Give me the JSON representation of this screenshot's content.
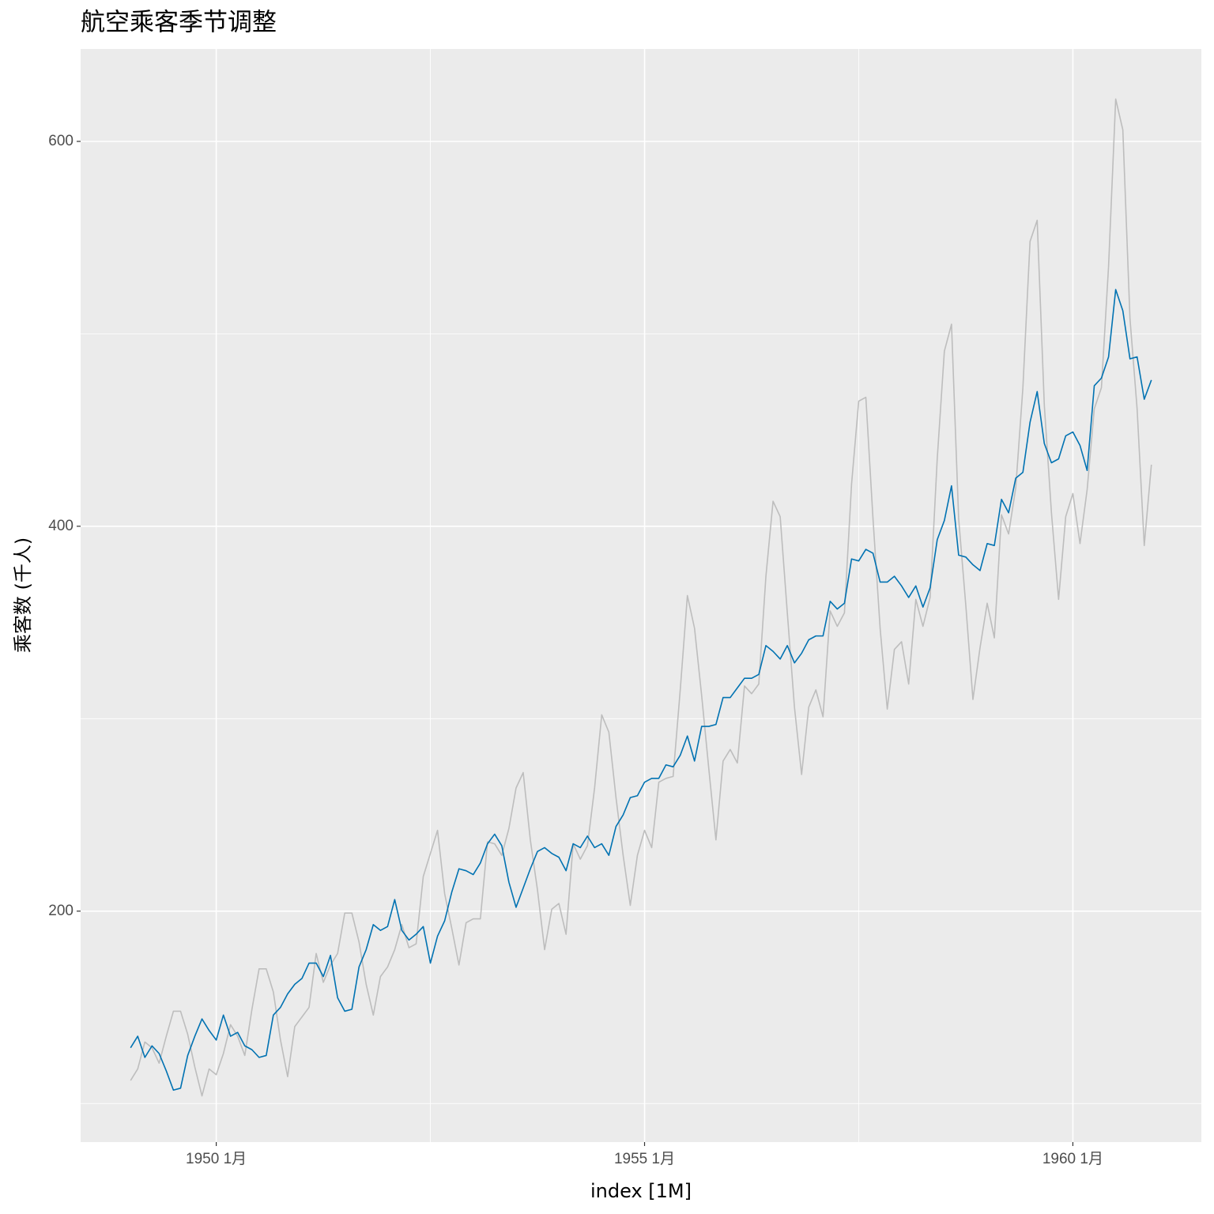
{
  "chart_data": {
    "type": "line",
    "title": "航空乘客季节调整",
    "xlabel": "index [1M]",
    "ylabel": "乘客数 (千人)",
    "x": [
      "1949-01",
      "1949-02",
      "1949-03",
      "1949-04",
      "1949-05",
      "1949-06",
      "1949-07",
      "1949-08",
      "1949-09",
      "1949-10",
      "1949-11",
      "1949-12",
      "1950-01",
      "1950-02",
      "1950-03",
      "1950-04",
      "1950-05",
      "1950-06",
      "1950-07",
      "1950-08",
      "1950-09",
      "1950-10",
      "1950-11",
      "1950-12",
      "1951-01",
      "1951-02",
      "1951-03",
      "1951-04",
      "1951-05",
      "1951-06",
      "1951-07",
      "1951-08",
      "1951-09",
      "1951-10",
      "1951-11",
      "1951-12",
      "1952-01",
      "1952-02",
      "1952-03",
      "1952-04",
      "1952-05",
      "1952-06",
      "1952-07",
      "1952-08",
      "1952-09",
      "1952-10",
      "1952-11",
      "1952-12",
      "1953-01",
      "1953-02",
      "1953-03",
      "1953-04",
      "1953-05",
      "1953-06",
      "1953-07",
      "1953-08",
      "1953-09",
      "1953-10",
      "1953-11",
      "1953-12",
      "1954-01",
      "1954-02",
      "1954-03",
      "1954-04",
      "1954-05",
      "1954-06",
      "1954-07",
      "1954-08",
      "1954-09",
      "1954-10",
      "1954-11",
      "1954-12",
      "1955-01",
      "1955-02",
      "1955-03",
      "1955-04",
      "1955-05",
      "1955-06",
      "1955-07",
      "1955-08",
      "1955-09",
      "1955-10",
      "1955-11",
      "1955-12",
      "1956-01",
      "1956-02",
      "1956-03",
      "1956-04",
      "1956-05",
      "1956-06",
      "1956-07",
      "1956-08",
      "1956-09",
      "1956-10",
      "1956-11",
      "1956-12",
      "1957-01",
      "1957-02",
      "1957-03",
      "1957-04",
      "1957-05",
      "1957-06",
      "1957-07",
      "1957-08",
      "1957-09",
      "1957-10",
      "1957-11",
      "1957-12",
      "1958-01",
      "1958-02",
      "1958-03",
      "1958-04",
      "1958-05",
      "1958-06",
      "1958-07",
      "1958-08",
      "1958-09",
      "1958-10",
      "1958-11",
      "1958-12",
      "1959-01",
      "1959-02",
      "1959-03",
      "1959-04",
      "1959-05",
      "1959-06",
      "1959-07",
      "1959-08",
      "1959-09",
      "1959-10",
      "1959-11",
      "1959-12",
      "1960-01",
      "1960-02",
      "1960-03",
      "1960-04",
      "1960-05",
      "1960-06",
      "1960-07",
      "1960-08",
      "1960-09",
      "1960-10",
      "1960-11",
      "1960-12"
    ],
    "series": [
      {
        "color": "#bdbdbd",
        "values": [
          112,
          118,
          132,
          129,
          121,
          135,
          148,
          148,
          136,
          119,
          104,
          118,
          115,
          126,
          141,
          135,
          125,
          149,
          170,
          170,
          158,
          133,
          114,
          140,
          145,
          150,
          178,
          163,
          172,
          178,
          199,
          199,
          184,
          162,
          146,
          166,
          171,
          180,
          193,
          181,
          183,
          218,
          230,
          242,
          209,
          191,
          172,
          194,
          196,
          196,
          236,
          235,
          229,
          243,
          264,
          272,
          237,
          211,
          180,
          201,
          204,
          188,
          235,
          227,
          234,
          264,
          302,
          293,
          259,
          229,
          203,
          229,
          242,
          233,
          267,
          269,
          270,
          315,
          364,
          347,
          312,
          274,
          237,
          278,
          284,
          277,
          317,
          313,
          318,
          374,
          413,
          405,
          355,
          306,
          271,
          306,
          315,
          301,
          356,
          348,
          355,
          422,
          465,
          467,
          404,
          347,
          305,
          336,
          340,
          318,
          362,
          348,
          363,
          435,
          491,
          505,
          404,
          359,
          310,
          337,
          360,
          342,
          406,
          396,
          420,
          472,
          548,
          559,
          463,
          407,
          362,
          405,
          417,
          391,
          419,
          461,
          472,
          535,
          622,
          606,
          508,
          461,
          390,
          432
        ]
      },
      {
        "color": "#0072b2",
        "values": [
          129,
          135,
          124,
          130,
          126,
          117,
          107,
          108,
          125,
          135,
          144,
          138,
          133,
          146,
          135,
          137,
          130,
          128,
          124,
          125,
          146,
          150,
          157,
          162,
          165,
          173,
          173,
          166,
          177,
          155,
          148,
          149,
          171,
          180,
          193,
          190,
          192,
          206,
          190,
          185,
          188,
          192,
          173,
          187,
          195,
          210,
          222,
          221,
          219,
          225,
          235,
          240,
          234,
          215,
          202,
          212,
          222,
          231,
          233,
          230,
          228,
          221,
          235,
          233,
          239,
          233,
          235,
          229,
          244,
          250,
          259,
          260,
          267,
          269,
          269,
          276,
          275,
          281,
          291,
          278,
          296,
          296,
          297,
          311,
          311,
          316,
          321,
          321,
          323,
          338,
          335,
          331,
          338,
          329,
          334,
          341,
          343,
          343,
          361,
          357,
          360,
          383,
          382,
          388,
          386,
          371,
          371,
          374,
          369,
          363,
          369,
          358,
          368,
          393,
          403,
          421,
          385,
          384,
          380,
          377,
          391,
          390,
          414,
          407,
          425,
          428,
          454,
          470,
          443,
          433,
          435,
          447,
          449,
          442,
          429,
          473,
          477,
          488,
          523,
          512,
          487,
          488,
          466,
          476
        ]
      }
    ],
    "xlim": [
      "1948-06",
      "1961-07"
    ],
    "xticks": [
      {
        "value": "1950-01",
        "label": "1950 1月"
      },
      {
        "value": "1955-01",
        "label": "1955 1月"
      },
      {
        "value": "1960-01",
        "label": "1960 1月"
      }
    ],
    "ylim": [
      80,
      648
    ],
    "yticks": [
      200,
      400,
      600
    ],
    "grid": true,
    "background": "#ebebeb"
  }
}
